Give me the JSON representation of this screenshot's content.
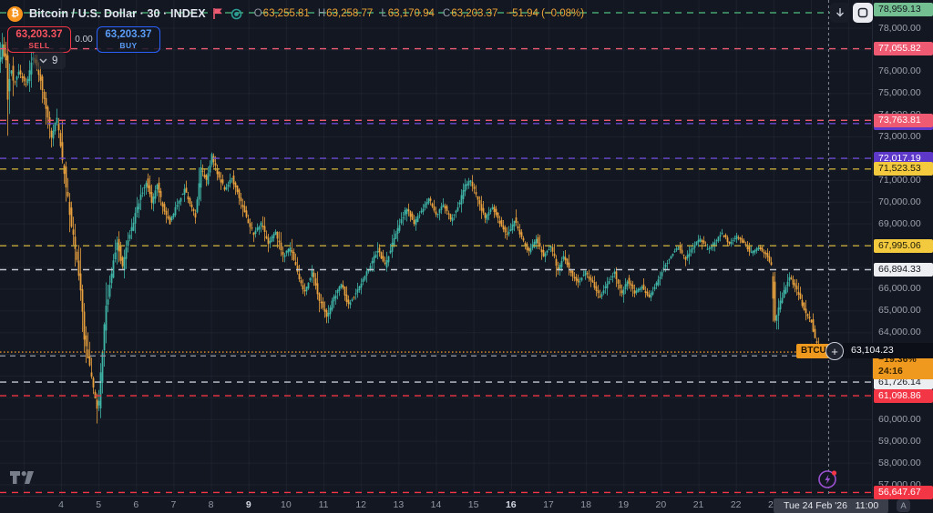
{
  "header": {
    "title": "Bitcoin / U.S. Dollar · 30 · INDEX",
    "symbol_icon": "₿",
    "ohlc": {
      "o_key": "O",
      "o": "63,255.81",
      "h_key": "H",
      "h": "63,258.77",
      "l_key": "L",
      "l": "63,170.94",
      "c_key": "C",
      "c": "63,203.37",
      "change": "−51.94 (−0.08%)"
    }
  },
  "trade_panel": {
    "sell_price": "63,203.37",
    "sell_label": "SELL",
    "spread": "0.00",
    "buy_price": "63,203.37",
    "buy_label": "BUY"
  },
  "indicators_badge": {
    "count": "9"
  },
  "current_price": {
    "badge": "BTCU",
    "value": "63,104.23",
    "change_pct": "−19.36%",
    "countdown": "24:16",
    "box_bg": "#ef9a1f",
    "box_fg": "#3a2500"
  },
  "price_axis": {
    "ticks": [
      {
        "price": 78000,
        "label": "78,000.00"
      },
      {
        "price": 76000,
        "label": "76,000.00"
      },
      {
        "price": 75000,
        "label": "75,000.00"
      },
      {
        "price": 74000,
        "label": "74,000.00"
      },
      {
        "price": 73000,
        "label": "73,000.00"
      },
      {
        "price": 71000,
        "label": "71,000.00"
      },
      {
        "price": 70000,
        "label": "70,000.00"
      },
      {
        "price": 69000,
        "label": "69,000.00"
      },
      {
        "price": 66000,
        "label": "66,000.00"
      },
      {
        "price": 65000,
        "label": "65,000.00"
      },
      {
        "price": 64000,
        "label": "64,000.00"
      },
      {
        "price": 60000,
        "label": "60,000.00"
      },
      {
        "price": 59000,
        "label": "59,000.00"
      },
      {
        "price": 58000,
        "label": "58,000.00"
      },
      {
        "price": 57000,
        "label": "57,000.00"
      }
    ]
  },
  "time_axis": {
    "labels": [
      {
        "day": 4,
        "text": "4",
        "bold": false
      },
      {
        "day": 5,
        "text": "5",
        "bold": false
      },
      {
        "day": 6,
        "text": "6",
        "bold": false
      },
      {
        "day": 7,
        "text": "7",
        "bold": false
      },
      {
        "day": 8,
        "text": "8",
        "bold": false
      },
      {
        "day": 9,
        "text": "9",
        "bold": true
      },
      {
        "day": 10,
        "text": "10",
        "bold": false
      },
      {
        "day": 11,
        "text": "11",
        "bold": false
      },
      {
        "day": 12,
        "text": "12",
        "bold": false
      },
      {
        "day": 13,
        "text": "13",
        "bold": false
      },
      {
        "day": 14,
        "text": "14",
        "bold": false
      },
      {
        "day": 15,
        "text": "15",
        "bold": false
      },
      {
        "day": 16,
        "text": "16",
        "bold": true
      },
      {
        "day": 17,
        "text": "17",
        "bold": false
      },
      {
        "day": 18,
        "text": "18",
        "bold": false
      },
      {
        "day": 19,
        "text": "19",
        "bold": false
      },
      {
        "day": 20,
        "text": "20",
        "bold": false
      },
      {
        "day": 21,
        "text": "21",
        "bold": false
      },
      {
        "day": 22,
        "text": "22",
        "bold": false
      },
      {
        "day": 23,
        "text": "23",
        "bold": false
      }
    ],
    "tooltip": "Tue 24 Feb '26   11:00",
    "auto_label": "A"
  },
  "crosshair": {
    "day": 24.46
  },
  "chart_data": {
    "type": "candlestick",
    "symbol": "Bitcoin / U.S. Dollar",
    "interval": "30",
    "exchange": "INDEX",
    "last_bar": {
      "open": 63255.81,
      "high": 63258.77,
      "low": 63170.94,
      "close": 63203.37,
      "change": -51.94,
      "change_pct": -0.08
    },
    "current_price": 63104.23,
    "y_axis": {
      "min": 56200,
      "max": 79300,
      "grid_step": 1000
    },
    "x_axis": {
      "unit": "day of Feb '26",
      "first_label": 4,
      "last_label": 24,
      "crosshair_time": "Tue 24 Feb '26 11:00"
    },
    "up_color": "#3fb5a7",
    "down_color": "#e9a13e",
    "grid_color": "rgba(145,152,165,0.08)",
    "levels": [
      {
        "price": 78959.13,
        "label": "78,959.13",
        "line": "#46a371",
        "bg": "#74bf92",
        "fg": "#11141e",
        "dash": "7 6"
      },
      {
        "price": 77055.82,
        "label": "77,055.82",
        "line": "#ee5a71",
        "bg": "#ee5a71",
        "fg": "#ffffff",
        "dash": "7 6"
      },
      {
        "price": 73613.74,
        "label": "73,613.74",
        "line": "#6a48cf",
        "bg": "#5d38c9",
        "fg": "#ffffff",
        "dash": "7 6"
      },
      {
        "price": 73763.81,
        "label": "73,763.81",
        "line": "#ee5a71",
        "bg": "#ee5a71",
        "fg": "#ffffff",
        "dash": "7 6"
      },
      {
        "price": 72017.19,
        "label": "72,017.19",
        "line": "#6a48cf",
        "bg": "#5d38c9",
        "fg": "#ffffff",
        "dash": "7 6"
      },
      {
        "price": 71523.53,
        "label": "71,523.53",
        "line": "#c4a93c",
        "bg": "#f3ca3d",
        "fg": "#1c1a0a",
        "dash": "7 6"
      },
      {
        "price": 67995.06,
        "label": "67,995.06",
        "line": "#c4a93c",
        "bg": "#f3ca3d",
        "fg": "#1c1a0a",
        "dash": "7 6"
      },
      {
        "price": 66894.33,
        "label": "66,894.33",
        "line": "#c3c7d1",
        "bg": "#eceef2",
        "fg": "#14171f",
        "dash": "7 6"
      },
      {
        "price": 63104.23,
        "label": "",
        "line": "#e8962e",
        "bg": "",
        "fg": "",
        "dash": "1.5 2.5"
      },
      {
        "price": 62930.0,
        "label": "",
        "line": "#8b919e",
        "bg": "",
        "fg": "",
        "dash": "6 5"
      },
      {
        "price": 61726.14,
        "label": "61,726.14",
        "line": "#c3c7d1",
        "bg": "#eceef2",
        "fg": "#14171f",
        "dash": "7 6"
      },
      {
        "price": 61098.86,
        "label": "61,098.86",
        "line": "#f23645",
        "bg": "#f23645",
        "fg": "#ffffff",
        "dash": "7 6"
      },
      {
        "price": 56647.67,
        "label": "56,647.67",
        "line": "#f23645",
        "bg": "#f23645",
        "fg": "#ffffff",
        "dash": "7 6"
      }
    ],
    "price_path": [
      [
        2.37,
        76300
      ],
      [
        2.47,
        77150
      ],
      [
        2.57,
        76400
      ],
      [
        2.62,
        74900
      ],
      [
        2.69,
        76300
      ],
      [
        2.78,
        75300
      ],
      [
        2.9,
        76050
      ],
      [
        3.1,
        75350
      ],
      [
        3.3,
        76725
      ],
      [
        3.49,
        75625
      ],
      [
        3.64,
        74300
      ],
      [
        3.78,
        73050
      ],
      [
        3.93,
        73875
      ],
      [
        4.07,
        72000
      ],
      [
        4.22,
        70100
      ],
      [
        4.36,
        68425
      ],
      [
        4.51,
        66750
      ],
      [
        4.66,
        63825
      ],
      [
        4.8,
        62375
      ],
      [
        4.92,
        61325
      ],
      [
        5.02,
        60200
      ],
      [
        5.12,
        62800
      ],
      [
        5.24,
        65100
      ],
      [
        5.39,
        66750
      ],
      [
        5.53,
        68225
      ],
      [
        5.68,
        66975
      ],
      [
        5.82,
        68225
      ],
      [
        5.99,
        69275
      ],
      [
        6.16,
        70325
      ],
      [
        6.31,
        70950
      ],
      [
        6.45,
        70025
      ],
      [
        6.6,
        70750
      ],
      [
        6.77,
        69700
      ],
      [
        6.94,
        69050
      ],
      [
        7.13,
        69900
      ],
      [
        7.33,
        70600
      ],
      [
        7.48,
        69900
      ],
      [
        7.62,
        69350
      ],
      [
        7.77,
        71575
      ],
      [
        7.91,
        70950
      ],
      [
        8.06,
        72125
      ],
      [
        8.2,
        71350
      ],
      [
        8.4,
        70600
      ],
      [
        8.59,
        71150
      ],
      [
        8.79,
        70200
      ],
      [
        8.98,
        69275
      ],
      [
        9.18,
        68525
      ],
      [
        9.37,
        69025
      ],
      [
        9.57,
        68100
      ],
      [
        9.76,
        68675
      ],
      [
        9.95,
        67500
      ],
      [
        10.15,
        67925
      ],
      [
        10.34,
        66750
      ],
      [
        10.54,
        65825
      ],
      [
        10.73,
        66850
      ],
      [
        10.93,
        65500
      ],
      [
        11.12,
        64750
      ],
      [
        11.31,
        65585
      ],
      [
        11.51,
        66250
      ],
      [
        11.7,
        65250
      ],
      [
        11.9,
        65835
      ],
      [
        12.09,
        66425
      ],
      [
        12.29,
        67090
      ],
      [
        12.48,
        67805
      ],
      [
        12.68,
        67090
      ],
      [
        12.87,
        68100
      ],
      [
        13.06,
        68935
      ],
      [
        13.26,
        69770
      ],
      [
        13.45,
        69015
      ],
      [
        13.65,
        69605
      ],
      [
        13.84,
        70190
      ],
      [
        14.04,
        69355
      ],
      [
        14.23,
        69900
      ],
      [
        14.43,
        69190
      ],
      [
        14.62,
        69770
      ],
      [
        14.81,
        70735
      ],
      [
        14.96,
        71030
      ],
      [
        15.15,
        70105
      ],
      [
        15.35,
        69270
      ],
      [
        15.54,
        69770
      ],
      [
        15.74,
        69060
      ],
      [
        15.93,
        68430
      ],
      [
        16.13,
        69190
      ],
      [
        16.32,
        68345
      ],
      [
        16.52,
        67680
      ],
      [
        16.71,
        68345
      ],
      [
        16.9,
        67510
      ],
      [
        17.1,
        68015
      ],
      [
        17.29,
        66840
      ],
      [
        17.44,
        67595
      ],
      [
        17.63,
        66760
      ],
      [
        17.83,
        66255
      ],
      [
        18.02,
        66840
      ],
      [
        18.22,
        66255
      ],
      [
        18.41,
        65585
      ],
      [
        18.6,
        66255
      ],
      [
        18.8,
        66760
      ],
      [
        18.99,
        65835
      ],
      [
        19.14,
        66425
      ],
      [
        19.33,
        65835
      ],
      [
        19.53,
        66125
      ],
      [
        19.72,
        65585
      ],
      [
        19.92,
        66255
      ],
      [
        20.11,
        66965
      ],
      [
        20.3,
        67510
      ],
      [
        20.5,
        67925
      ],
      [
        20.69,
        67385
      ],
      [
        20.89,
        67925
      ],
      [
        21.08,
        68345
      ],
      [
        21.28,
        67805
      ],
      [
        21.47,
        68175
      ],
      [
        21.67,
        68550
      ],
      [
        21.86,
        68100
      ],
      [
        22.06,
        68430
      ],
      [
        22.25,
        68100
      ],
      [
        22.44,
        67675
      ],
      [
        22.64,
        67925
      ],
      [
        22.83,
        67600
      ],
      [
        22.98,
        67175
      ],
      [
        23.08,
        64330
      ],
      [
        23.17,
        65085
      ],
      [
        23.32,
        65920
      ],
      [
        23.47,
        66550
      ],
      [
        23.61,
        66125
      ],
      [
        23.76,
        65500
      ],
      [
        23.9,
        64875
      ],
      [
        24.05,
        64455
      ],
      [
        24.15,
        63745
      ],
      [
        24.24,
        63075
      ],
      [
        24.36,
        63105
      ]
    ]
  },
  "colors": {
    "bg": "#131722",
    "accent_orange": "#f7931a",
    "sell_red": "#f23645",
    "buy_blue": "#2962ff"
  }
}
